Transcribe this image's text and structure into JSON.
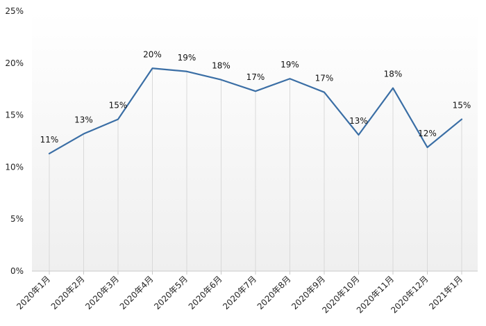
{
  "chart_data": {
    "type": "line",
    "categories": [
      "2020年1月",
      "2020年2月",
      "2020年3月",
      "2020年4月",
      "2020年5月",
      "2020年6月",
      "2020年7月",
      "2020年8月",
      "2020年9月",
      "2020年10月",
      "2020年11月",
      "2020年12月",
      "2021年1月"
    ],
    "values": [
      11.3,
      13.2,
      14.6,
      19.5,
      19.2,
      18.4,
      17.3,
      18.5,
      17.2,
      13.1,
      17.6,
      11.9,
      14.6
    ],
    "data_labels": [
      "11%",
      "13%",
      "15%",
      "20%",
      "19%",
      "18%",
      "17%",
      "19%",
      "17%",
      "13%",
      "18%",
      "12%",
      "15%"
    ],
    "y_ticks": [
      "0%",
      "5%",
      "10%",
      "15%",
      "20%",
      "25%"
    ],
    "ylim": [
      0,
      25
    ],
    "title": "",
    "xlabel": "",
    "ylabel": "",
    "grid": "vertical lines at categories",
    "line_color": "#3a6ea5",
    "grid_color": "#d9d9d9",
    "fill_gradient": [
      "#ffffff",
      "#f0f0f0"
    ]
  }
}
